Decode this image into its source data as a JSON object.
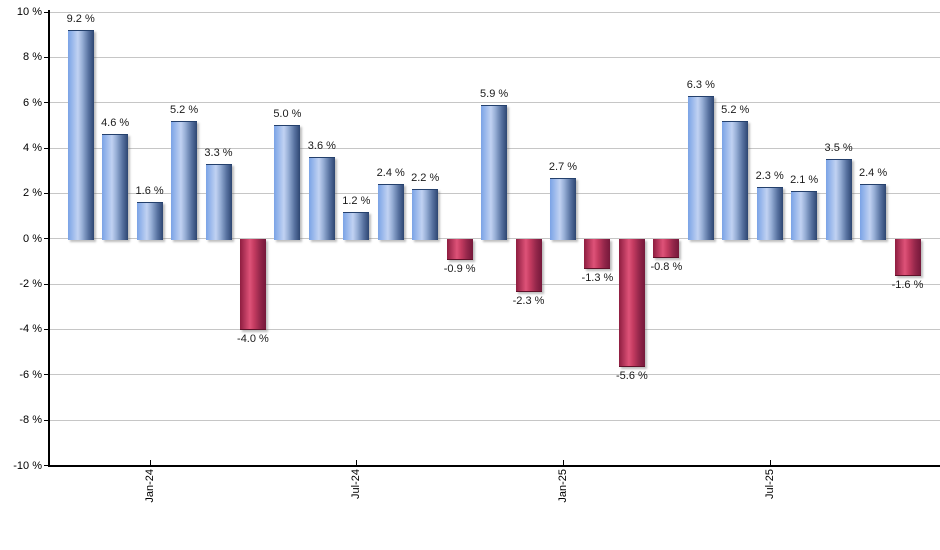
{
  "chart_data": {
    "type": "bar",
    "title": "",
    "unit": "%",
    "values": [
      9.2,
      4.6,
      1.6,
      5.2,
      3.3,
      -4.0,
      5.0,
      3.6,
      1.2,
      2.4,
      2.2,
      -0.9,
      5.9,
      -2.3,
      2.7,
      -1.3,
      -5.6,
      -0.8,
      6.3,
      5.2,
      2.3,
      2.1,
      3.5,
      2.4,
      -1.6
    ],
    "bar_labels": [
      "9.2 %",
      "4.6 %",
      "1.6 %",
      "5.2 %",
      "3.3 %",
      "-4.0 %",
      "5.0 %",
      "3.6 %",
      "1.2 %",
      "2.4 %",
      "2.2 %",
      "-0.9 %",
      "5.9 %",
      "-2.3 %",
      "2.7 %",
      "-1.3 %",
      "-5.6 %",
      "-0.8 %",
      "6.3 %",
      "5.2 %",
      "2.3 %",
      "2.1 %",
      "3.5 %",
      "2.4 %",
      "-1.6 %"
    ],
    "y_axis": {
      "ticks": [
        10,
        8,
        6,
        4,
        2,
        0,
        -2,
        -4,
        -6,
        -8,
        -10
      ],
      "labels": [
        "10 %",
        "8 %",
        "6 %",
        "4 %",
        "2 %",
        "0 %",
        "-2 %",
        "-4 %",
        "-6 %",
        "-8 %",
        "-10 %"
      ],
      "range": [
        -10,
        10
      ]
    },
    "x_axis": {
      "ticks": [
        {
          "index": 2,
          "label": "Jan-24"
        },
        {
          "index": 8,
          "label": "Jul-24"
        },
        {
          "index": 14,
          "label": "Jan-25"
        },
        {
          "index": 20,
          "label": "Jul-25"
        }
      ]
    },
    "colors": {
      "positive_gradient": [
        "#7aa3e6",
        "#c1d2f2",
        "#97afd6",
        "#5a74a2",
        "#2d4672"
      ],
      "negative_gradient": [
        "#8e1d40",
        "#de5278",
        "#c33b60",
        "#93264a",
        "#75183a"
      ],
      "positive_border": "#24406c",
      "negative_border": "#5f1129",
      "gridline": "#c6c6c6",
      "axis": "#000000",
      "label_text": "#1a1a1a"
    },
    "grid": true,
    "legend": "none"
  }
}
